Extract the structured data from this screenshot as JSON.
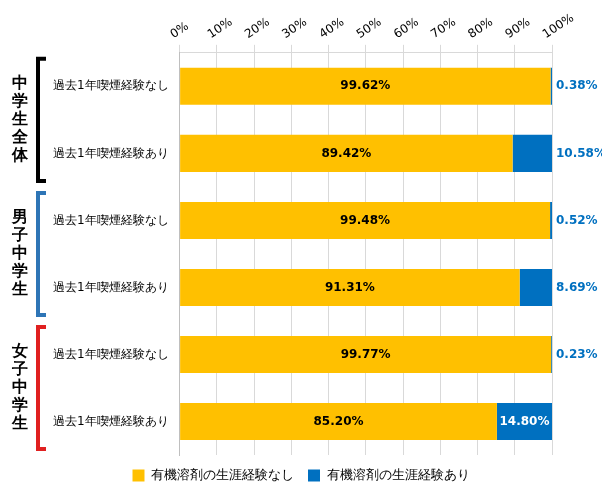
{
  "chart_data": {
    "type": "bar",
    "orientation": "horizontal",
    "stacked": true,
    "data_labels": true,
    "grid": true,
    "legend": "bottom",
    "categories": [
      "過去1年喫煙経験なし",
      "過去1年喫煙経験あり",
      "過去1年喫煙経験なし",
      "過去1年喫煙経験あり",
      "過去1年喫煙経験なし",
      "過去1年喫煙経験あり"
    ],
    "groups": [
      {
        "name": "中学生全体",
        "color": "#000000",
        "categories": [
          "過去1年喫煙経験なし",
          "過去1年喫煙経験あり"
        ]
      },
      {
        "name": "男子中学生",
        "color": "#2E75B6",
        "categories": [
          "過去1年喫煙経験なし",
          "過去1年喫煙経験あり"
        ]
      },
      {
        "name": "女子中学生",
        "color": "#E02020",
        "categories": [
          "過去1年喫煙経験なし",
          "過去1年喫煙経験あり"
        ]
      }
    ],
    "series": [
      {
        "name": "有機溶剤の生涯経験なし",
        "color": "#FFC000",
        "values": [
          99.62,
          89.42,
          99.48,
          91.31,
          99.77,
          85.2
        ],
        "value_labels": [
          "99.62%",
          "89.42%",
          "99.48%",
          "91.31%",
          "99.77%",
          "85.20%"
        ]
      },
      {
        "name": "有機溶剤の生涯経験あり",
        "color": "#0070C0",
        "values": [
          0.38,
          10.58,
          0.52,
          8.69,
          0.23,
          14.8
        ],
        "value_labels": [
          "0.38%",
          "10.58%",
          "0.52%",
          "8.69%",
          "0.23%",
          "14.80%"
        ]
      }
    ],
    "xlim": [
      0,
      100
    ],
    "xticks": [
      {
        "value": 0,
        "label": "0%"
      },
      {
        "value": 10,
        "label": "10%"
      },
      {
        "value": 20,
        "label": "20%"
      },
      {
        "value": 30,
        "label": "30%"
      },
      {
        "value": 40,
        "label": "40%"
      },
      {
        "value": 50,
        "label": "50%"
      },
      {
        "value": 60,
        "label": "60%"
      },
      {
        "value": 70,
        "label": "70%"
      },
      {
        "value": 80,
        "label": "80%"
      },
      {
        "value": 90,
        "label": "90%"
      },
      {
        "value": 100,
        "label": "100%"
      }
    ]
  }
}
